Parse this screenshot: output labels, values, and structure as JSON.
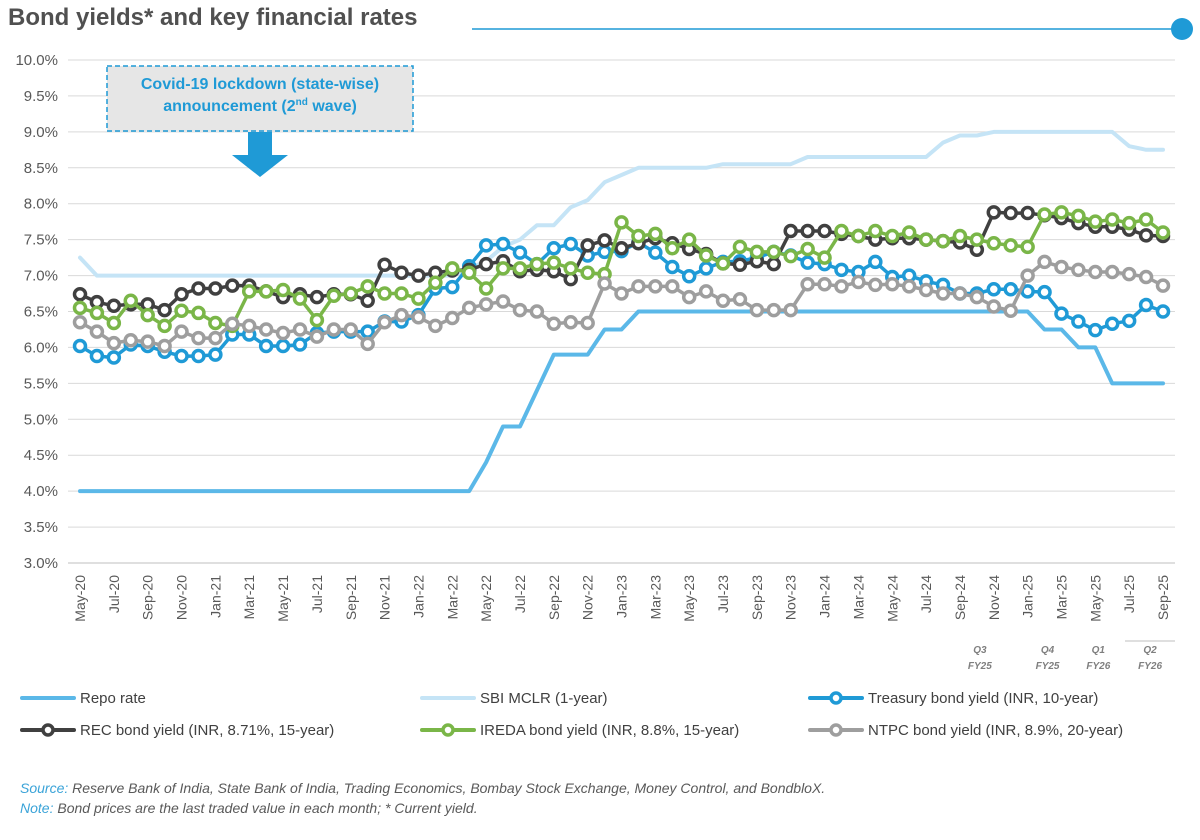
{
  "chart_data": {
    "type": "line",
    "title": "Bond yields* and key financial rates",
    "ylim": [
      3.0,
      10.0
    ],
    "yticks": [
      "3.0%",
      "3.5%",
      "4.0%",
      "4.5%",
      "5.0%",
      "5.5%",
      "6.0%",
      "6.5%",
      "7.0%",
      "7.5%",
      "8.0%",
      "8.5%",
      "9.0%",
      "9.5%",
      "10.0%"
    ],
    "months": [
      "May-20",
      "Jun-20",
      "Jul-20",
      "Aug-20",
      "Sep-20",
      "Oct-20",
      "Nov-20",
      "Dec-20",
      "Jan-21",
      "Feb-21",
      "Mar-21",
      "Apr-21",
      "May-21",
      "Jun-21",
      "Jul-21",
      "Aug-21",
      "Sep-21",
      "Oct-21",
      "Nov-21",
      "Dec-21",
      "Jan-22",
      "Feb-22",
      "Mar-22",
      "Apr-22",
      "May-22",
      "Jun-22",
      "Jul-22",
      "Aug-22",
      "Sep-22",
      "Oct-22",
      "Nov-22",
      "Dec-22",
      "Jan-23",
      "Feb-23",
      "Mar-23",
      "Apr-23",
      "May-23",
      "Jun-23",
      "Jul-23",
      "Aug-23",
      "Sep-23",
      "Oct-23",
      "Nov-23",
      "Dec-23",
      "Jan-24",
      "Feb-24",
      "Mar-24",
      "Apr-24",
      "May-24",
      "Jun-24",
      "Jul-24",
      "Aug-24",
      "Sep-24",
      "Oct-24",
      "Nov-24",
      "Dec-24",
      "Jan-25",
      "Feb-25",
      "Mar-25",
      "Apr-25",
      "May-25",
      "Jun-25",
      "Jul-25",
      "Aug-25",
      "Sep-25"
    ],
    "xtick_labels": [
      "May-20",
      "Jul-20",
      "Sep-20",
      "Nov-20",
      "Jan-21",
      "Mar-21",
      "May-21",
      "Jul-21",
      "Sep-21",
      "Nov-21",
      "Jan-22",
      "Mar-22",
      "May-22",
      "Jul-22",
      "Sep-22",
      "Nov-22",
      "Jan-23",
      "Mar-23",
      "May-23",
      "Jul-23",
      "Sep-23",
      "Nov-23",
      "Jan-24",
      "Mar-24",
      "May-24",
      "Jul-24",
      "Sep-24",
      "Nov-24",
      "Jan-25",
      "Mar-25",
      "May-25",
      "Jul-25",
      "Sep-25"
    ],
    "series": [
      {
        "name": "Repo rate",
        "color": "#5bb8e8",
        "markers": false,
        "daily_step": true,
        "values": [
          4.0,
          4.0,
          4.0,
          4.0,
          4.0,
          4.0,
          4.0,
          4.0,
          4.0,
          4.0,
          4.0,
          4.0,
          4.0,
          4.0,
          4.0,
          4.0,
          4.0,
          4.0,
          4.0,
          4.0,
          4.0,
          4.0,
          4.0,
          4.0,
          4.4,
          4.9,
          4.9,
          5.4,
          5.9,
          5.9,
          5.9,
          6.25,
          6.25,
          6.5,
          6.5,
          6.5,
          6.5,
          6.5,
          6.5,
          6.5,
          6.5,
          6.5,
          6.5,
          6.5,
          6.5,
          6.5,
          6.5,
          6.5,
          6.5,
          6.5,
          6.5,
          6.5,
          6.5,
          6.5,
          6.5,
          6.5,
          6.5,
          6.25,
          6.25,
          6.0,
          6.0,
          5.5,
          5.5,
          5.5,
          5.5
        ]
      },
      {
        "name": "SBI MCLR (1-year)",
        "color": "#c5e4f6",
        "markers": false,
        "values": [
          7.25,
          7.0,
          7.0,
          7.0,
          7.0,
          7.0,
          7.0,
          7.0,
          7.0,
          7.0,
          7.0,
          7.0,
          7.0,
          7.0,
          7.0,
          7.0,
          7.0,
          7.0,
          7.0,
          7.0,
          7.0,
          7.0,
          7.0,
          7.1,
          7.2,
          7.4,
          7.5,
          7.7,
          7.7,
          7.95,
          8.05,
          8.3,
          8.4,
          8.5,
          8.5,
          8.5,
          8.5,
          8.5,
          8.55,
          8.55,
          8.55,
          8.55,
          8.55,
          8.65,
          8.65,
          8.65,
          8.65,
          8.65,
          8.65,
          8.65,
          8.65,
          8.85,
          8.95,
          8.95,
          9.0,
          9.0,
          9.0,
          9.0,
          9.0,
          9.0,
          9.0,
          9.0,
          8.8,
          8.75,
          8.75
        ]
      },
      {
        "name": "Treasury bond yield (INR, 10-year)",
        "color": "#1f9ad6",
        "markers": true,
        "values": [
          6.02,
          5.88,
          5.86,
          6.04,
          6.02,
          5.94,
          5.88,
          5.88,
          5.9,
          6.18,
          6.18,
          6.02,
          6.02,
          6.04,
          6.2,
          6.22,
          6.22,
          6.22,
          6.36,
          6.36,
          6.45,
          6.82,
          6.84,
          7.13,
          7.42,
          7.44,
          7.32,
          7.16,
          7.38,
          7.44,
          7.28,
          7.33,
          7.34,
          7.46,
          7.32,
          7.12,
          6.99,
          7.1,
          7.19,
          7.2,
          7.25,
          7.33,
          7.28,
          7.18,
          7.16,
          7.08,
          7.05,
          7.19,
          6.98,
          7.0,
          6.92,
          6.87,
          6.75,
          6.75,
          6.81,
          6.81,
          6.78,
          6.77,
          6.47,
          6.36,
          6.24,
          6.33,
          6.37,
          6.59,
          6.5
        ]
      },
      {
        "name": "REC bond yield (INR, 8.71%, 15-year)",
        "color": "#404040",
        "markers": true,
        "values": [
          6.74,
          6.63,
          6.58,
          6.6,
          6.6,
          6.52,
          6.74,
          6.82,
          6.82,
          6.86,
          6.86,
          6.78,
          6.7,
          6.74,
          6.7,
          6.74,
          6.74,
          6.65,
          7.15,
          7.04,
          7.0,
          7.04,
          7.07,
          7.08,
          7.16,
          7.2,
          7.06,
          7.08,
          7.06,
          6.95,
          7.42,
          7.49,
          7.38,
          7.45,
          7.52,
          7.45,
          7.37,
          7.3,
          7.17,
          7.15,
          7.2,
          7.16,
          7.62,
          7.62,
          7.62,
          7.58,
          7.55,
          7.5,
          7.52,
          7.52,
          7.5,
          7.48,
          7.46,
          7.36,
          7.88,
          7.87,
          7.87,
          7.84,
          7.8,
          7.73,
          7.68,
          7.68,
          7.64,
          7.56,
          7.55
        ]
      },
      {
        "name": "IREDA bond yield (INR, 8.8%, 15-year)",
        "color": "#7ab648",
        "markers": true,
        "values": [
          6.55,
          6.48,
          6.34,
          6.65,
          6.45,
          6.3,
          6.51,
          6.48,
          6.34,
          6.3,
          6.78,
          6.78,
          6.8,
          6.68,
          6.38,
          6.72,
          6.75,
          6.85,
          6.75,
          6.75,
          6.68,
          6.9,
          7.1,
          7.04,
          6.82,
          7.1,
          7.1,
          7.16,
          7.18,
          7.1,
          7.04,
          7.02,
          7.74,
          7.55,
          7.58,
          7.38,
          7.5,
          7.28,
          7.17,
          7.4,
          7.33,
          7.33,
          7.27,
          7.37,
          7.25,
          7.62,
          7.55,
          7.62,
          7.55,
          7.6,
          7.5,
          7.48,
          7.55,
          7.5,
          7.45,
          7.42,
          7.4,
          7.85,
          7.88,
          7.83,
          7.75,
          7.78,
          7.73,
          7.78,
          7.6
        ]
      },
      {
        "name": "NTPC bond yield (INR, 8.9%, 20-year)",
        "color": "#9e9e9e",
        "markers": true,
        "values": [
          6.35,
          6.22,
          6.06,
          6.1,
          6.08,
          6.02,
          6.22,
          6.13,
          6.13,
          6.33,
          6.3,
          6.25,
          6.2,
          6.25,
          6.15,
          6.25,
          6.25,
          6.05,
          6.35,
          6.45,
          6.42,
          6.3,
          6.41,
          6.55,
          6.6,
          6.64,
          6.52,
          6.5,
          6.33,
          6.35,
          6.34,
          6.89,
          6.75,
          6.85,
          6.85,
          6.85,
          6.7,
          6.78,
          6.65,
          6.67,
          6.52,
          6.52,
          6.52,
          6.88,
          6.88,
          6.85,
          6.91,
          6.87,
          6.88,
          6.85,
          6.8,
          6.75,
          6.75,
          6.7,
          6.57,
          6.51,
          7.0,
          7.19,
          7.12,
          7.08,
          7.05,
          7.05,
          7.02,
          6.98,
          6.86
        ]
      }
    ],
    "annotations": {
      "lockdown_line1": "Covid-19 lockdown (state-wise)",
      "lockdown_line2_pre": "announcement (2",
      "lockdown_line2_sup": "nd",
      "lockdown_line2_post": " wave)",
      "quarters": [
        {
          "q": "Q3",
          "fy": "FY25"
        },
        {
          "q": "Q4",
          "fy": "FY25"
        },
        {
          "q": "Q1",
          "fy": "FY26"
        },
        {
          "q": "Q2",
          "fy": "FY26"
        }
      ]
    }
  },
  "colors": {
    "accent": "#1f9ad6",
    "title": "#505050",
    "grid": "#d9d9d9",
    "annotation_bg": "#e6e6e6"
  },
  "footer": {
    "source_label": "Source:",
    "source_text": " Reserve Bank of India, State Bank of India, Trading Economics, Bombay Stock Exchange, Money Control, and BondbloX.",
    "note_label": "Note:",
    "note_text": " Bond prices are the last traded value in each month; * Current yield."
  }
}
